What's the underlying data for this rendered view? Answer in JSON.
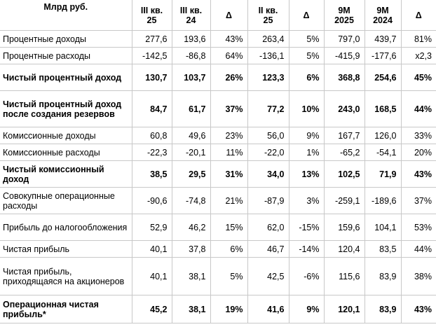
{
  "headers": {
    "label": "Млрд руб.",
    "c1_l1": "III кв.",
    "c1_l2": "25",
    "c2_l1": "III кв.",
    "c2_l2": "24",
    "c3": "Δ",
    "c4_l1": "II кв.",
    "c4_l2": "25",
    "c5": "Δ",
    "c6_l1": "9М",
    "c6_l2": "2025",
    "c7_l1": "9М",
    "c7_l2": "2024",
    "c8": "Δ"
  },
  "rows": [
    {
      "label": "Процентные доходы",
      "v": [
        "277,6",
        "193,6",
        "43%",
        "263,4",
        "5%",
        "797,0",
        "439,7",
        "81%"
      ]
    },
    {
      "label": "Процентные расходы",
      "v": [
        "-142,5",
        "-86,8",
        "64%",
        "-136,1",
        "5%",
        "-415,9",
        "-177,6",
        "х2,3"
      ]
    },
    {
      "label": "Чистый процентный доход",
      "v": [
        "130,7",
        "103,7",
        "26%",
        "123,3",
        "6%",
        "368,8",
        "254,6",
        "45%"
      ]
    },
    {
      "label": "Чистый процентный доход после создания резервов",
      "v": [
        "84,7",
        "61,7",
        "37%",
        "77,2",
        "10%",
        "243,0",
        "168,5",
        "44%"
      ]
    },
    {
      "label": "Комиссионные доходы",
      "v": [
        "60,8",
        "49,6",
        "23%",
        "56,0",
        "9%",
        "167,7",
        "126,0",
        "33%"
      ]
    },
    {
      "label": "Комиссионные расходы",
      "v": [
        "-22,3",
        "-20,1",
        "11%",
        "-22,0",
        "1%",
        "-65,2",
        "-54,1",
        "20%"
      ]
    },
    {
      "label": "Чистый комиссионный доход",
      "v": [
        "38,5",
        "29,5",
        "31%",
        "34,0",
        "13%",
        "102,5",
        "71,9",
        "43%"
      ]
    },
    {
      "label": "Совокупные операционные расходы",
      "v": [
        "-90,6",
        "-74,8",
        "21%",
        "-87,9",
        "3%",
        "-259,1",
        "-189,6",
        "37%"
      ]
    },
    {
      "label": "Прибыль до налогообложения",
      "v": [
        "52,9",
        "46,2",
        "15%",
        "62,0",
        "-15%",
        "159,6",
        "104,1",
        "53%"
      ]
    },
    {
      "label": "Чистая прибыль",
      "v": [
        "40,1",
        "37,8",
        "6%",
        "46,7",
        "-14%",
        "120,4",
        "83,5",
        "44%"
      ]
    },
    {
      "label": "Чистая прибыль, приходящаяся на акционеров",
      "v": [
        "40,1",
        "38,1",
        "5%",
        "42,5",
        "-6%",
        "115,6",
        "83,9",
        "38%"
      ]
    },
    {
      "label": "Операционная чистая прибыль*",
      "v": [
        "45,2",
        "38,1",
        "19%",
        "41,6",
        "9%",
        "120,1",
        "83,9",
        "43%"
      ]
    }
  ]
}
